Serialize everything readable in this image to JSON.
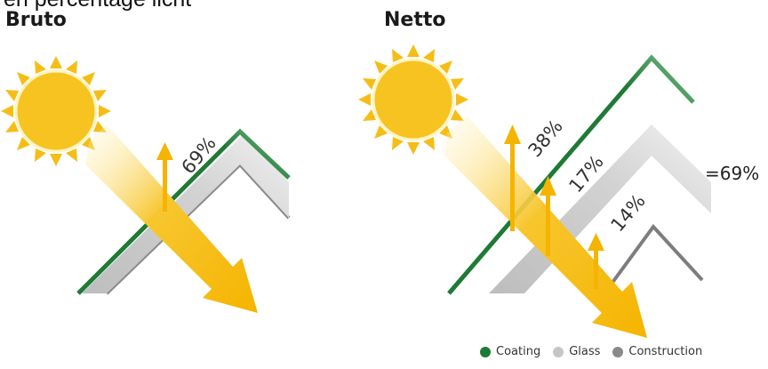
{
  "caption": "en percentage licht",
  "panels": {
    "bruto": {
      "title": "Bruto",
      "percent": "69%"
    },
    "netto": {
      "title": "Netto",
      "coating": "38%",
      "glass": "17%",
      "construction": "14%",
      "total": "=69%"
    }
  },
  "legend": [
    {
      "label": "Coating",
      "color": "#1f7a35"
    },
    {
      "label": "Glass",
      "color": "#c5c5c5"
    },
    {
      "label": "Construction",
      "color": "#8a8a8a"
    }
  ],
  "colors": {
    "sun": "#f6bd16",
    "arrow": "#f5b400",
    "coating": "#1f7a35",
    "glass": "#c8c8c8",
    "construction": "#7d7d7d"
  }
}
